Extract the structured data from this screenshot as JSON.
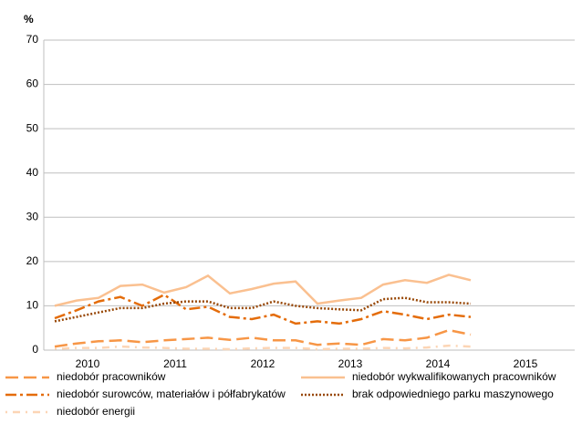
{
  "chart_data": {
    "type": "line",
    "y_unit": "%",
    "x": [
      2010,
      2010.25,
      2010.5,
      2010.75,
      2011,
      2011.25,
      2011.5,
      2011.75,
      2012,
      2012.25,
      2012.5,
      2012.75,
      2013,
      2013.25,
      2013.5,
      2013.75,
      2014,
      2014.25,
      2014.5,
      2014.75
    ],
    "xlim": [
      2009.875,
      2015.9375
    ],
    "xticks": [
      {
        "value": 2010.375,
        "label": "2010"
      },
      {
        "value": 2011.375,
        "label": "2011"
      },
      {
        "value": 2012.375,
        "label": "2012"
      },
      {
        "value": 2013.375,
        "label": "2013"
      },
      {
        "value": 2014.375,
        "label": "2014"
      },
      {
        "value": 2015.375,
        "label": "2015"
      }
    ],
    "ylim": [
      0,
      70
    ],
    "yticks": [
      0,
      10,
      20,
      30,
      40,
      50,
      60,
      70
    ],
    "grid": true,
    "series": [
      {
        "name": "niedobór pracowników",
        "color": "#f79646",
        "dash": "14,6",
        "values": [
          0.8,
          1.5,
          2,
          2.2,
          1.8,
          2.2,
          2.5,
          2.8,
          2.3,
          2.8,
          2.2,
          2.2,
          1.2,
          1.5,
          1.2,
          2.5,
          2.2,
          2.8,
          4.5,
          3.5
        ]
      },
      {
        "name": "niedobór wykwalifikowanych pracowników",
        "color": "#fac090",
        "dash": "none",
        "values": [
          10,
          11.2,
          11.8,
          14.5,
          14.8,
          13,
          14.2,
          16.8,
          12.8,
          13.8,
          15,
          15.5,
          10.5,
          11.2,
          11.8,
          14.8,
          15.8,
          15.2,
          17,
          15.8
        ]
      },
      {
        "name": "niedobór surowców, materiałów i półfabrykatów",
        "color": "#e46c0a",
        "dash": "12,4,3,4",
        "values": [
          7.2,
          9,
          11,
          12,
          10,
          12.5,
          9.2,
          9.8,
          7.5,
          7,
          8,
          6,
          6.5,
          6,
          7,
          8.8,
          8,
          7,
          8,
          7.5
        ]
      },
      {
        "name": "brak odpowiedniego parku maszynowego",
        "color": "#984807",
        "dash": "2,2",
        "values": [
          6.5,
          7.5,
          8.5,
          9.5,
          9.5,
          10.5,
          11,
          11,
          9.5,
          9.5,
          11,
          10,
          9.5,
          9.2,
          9,
          11.5,
          11.8,
          10.8,
          10.8,
          10.5
        ]
      },
      {
        "name": "niedobór energii",
        "color": "#fcd5b5",
        "dash": "2,6,8,6",
        "values": [
          0.3,
          0.5,
          0.5,
          0.8,
          0.6,
          0.5,
          0.3,
          0.3,
          0.2,
          0.4,
          0.5,
          0.5,
          0.2,
          0.3,
          0.3,
          0.5,
          0.4,
          0.6,
          1,
          0.8
        ]
      }
    ]
  }
}
